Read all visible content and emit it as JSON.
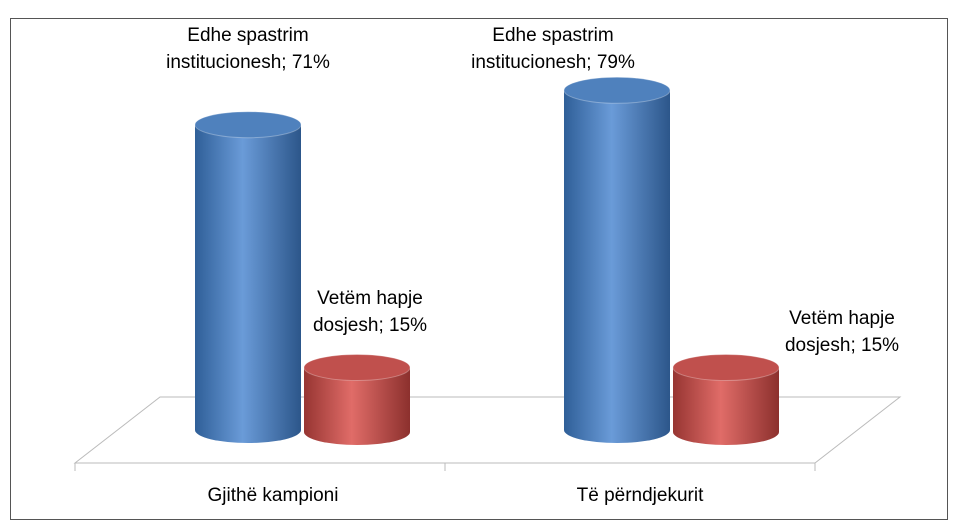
{
  "chart_data": {
    "type": "bar3d",
    "categories": [
      "Gjithë kampioni",
      "Të përndjekurit"
    ],
    "series": [
      {
        "color": "#4f81bd",
        "values": [
          71,
          79
        ],
        "value_labels": [
          "Edhe spastrim institucionesh; 71%",
          "Edhe spastrim institucionesh; 79%"
        ]
      },
      {
        "color": "#c0504d",
        "values": [
          15,
          15
        ],
        "value_labels": [
          "Vetëm hapje dosjesh; 15%",
          "Vetëm hapje dosjesh; 15%"
        ]
      }
    ]
  }
}
